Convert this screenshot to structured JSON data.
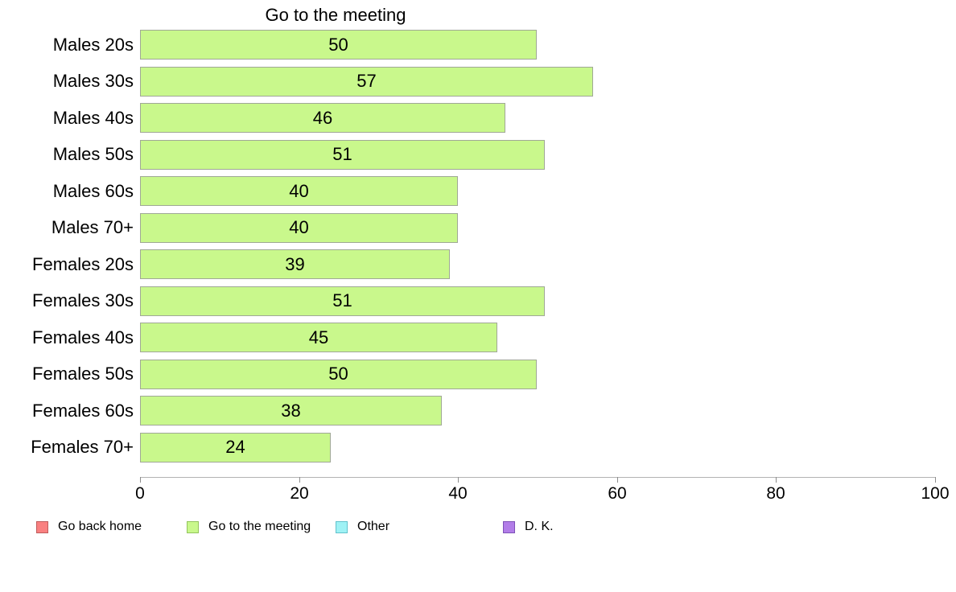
{
  "chart_data": {
    "type": "bar",
    "orientation": "horizontal",
    "title": "Go to the meeting",
    "categories": [
      "Males 20s",
      "Males 30s",
      "Males 40s",
      "Males 50s",
      "Males 60s",
      "Males 70+",
      "Females 20s",
      "Females 30s",
      "Females 40s",
      "Females 50s",
      "Females 60s",
      "Females 70+"
    ],
    "values": [
      50,
      57,
      46,
      51,
      40,
      40,
      39,
      51,
      45,
      50,
      38,
      24
    ],
    "value_labels_shown": true,
    "xlabel": "",
    "ylabel": "",
    "xlim": [
      0,
      100
    ],
    "xticks": [
      0,
      20,
      40,
      60,
      80,
      100
    ],
    "grid": "off",
    "bar_color": "#c9f88c",
    "bar_border_color": "#a0a896",
    "legend": {
      "position": "bottom",
      "items": [
        {
          "label": "Go back home",
          "color": "#f98080",
          "border": "#bf5b5b"
        },
        {
          "label": "Go to the meeting",
          "color": "#c9f88c",
          "border": "#93c45c"
        },
        {
          "label": "Other",
          "color": "#9ff2f5",
          "border": "#62c2cc"
        },
        {
          "label": "D. K.",
          "color": "#b27de8",
          "border": "#7e52b8"
        }
      ]
    }
  }
}
